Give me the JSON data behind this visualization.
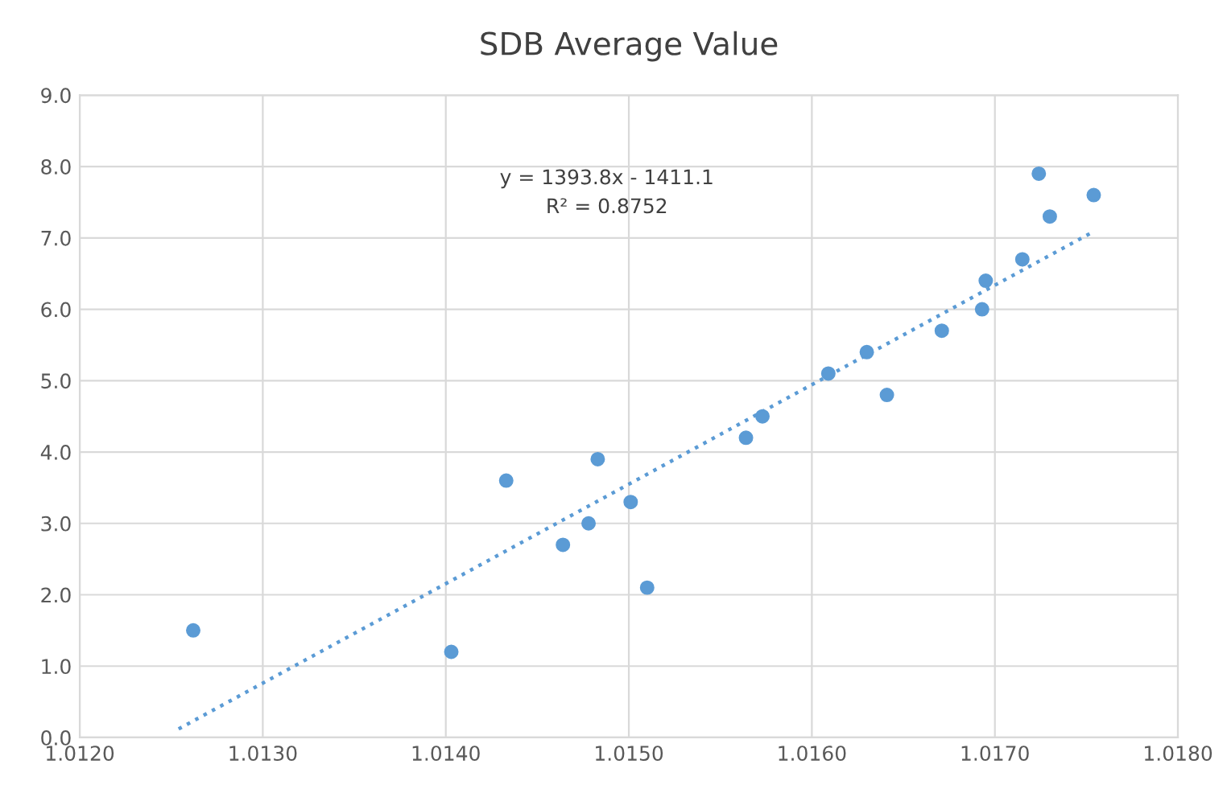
{
  "chart_data": {
    "type": "scatter",
    "title": "SDB Average Value",
    "series": [
      {
        "color": "#5b9bd5",
        "marker": "circle",
        "x": [
          1.01262,
          1.01403,
          1.01433,
          1.01464,
          1.01478,
          1.01483,
          1.01501,
          1.0151,
          1.01564,
          1.01573,
          1.01609,
          1.0163,
          1.01641,
          1.01671,
          1.01693,
          1.01695,
          1.01715,
          1.01724,
          1.0173,
          1.01754
        ],
        "values": [
          1.5,
          1.2,
          3.6,
          2.7,
          3.0,
          3.9,
          3.3,
          2.1,
          4.2,
          4.5,
          5.1,
          5.4,
          4.8,
          5.7,
          6.0,
          6.4,
          6.7,
          7.9,
          7.3,
          7.6
        ]
      },
      {
        "type": "line",
        "color": "#5b9bd5",
        "line_style": "dotted",
        "x": [
          1.01254,
          1.01754
        ],
        "values": [
          0.12,
          7.09
        ]
      }
    ],
    "annotations": [
      "y = 1393.8x - 1411.1",
      "R² = 0.8752"
    ],
    "xlim": [
      1.012,
      1.018
    ],
    "xticks": [
      {
        "value": 1.012,
        "label": "1.0120"
      },
      {
        "value": 1.013,
        "label": "1.0130"
      },
      {
        "value": 1.014,
        "label": "1.0140"
      },
      {
        "value": 1.015,
        "label": "1.0150"
      },
      {
        "value": 1.016,
        "label": "1.0160"
      },
      {
        "value": 1.017,
        "label": "1.0170"
      },
      {
        "value": 1.018,
        "label": "1.0180"
      }
    ],
    "ylim": [
      0,
      9
    ],
    "yticks": [
      {
        "value": 0,
        "label": "0.0"
      },
      {
        "value": 1,
        "label": "1.0"
      },
      {
        "value": 2,
        "label": "2.0"
      },
      {
        "value": 3,
        "label": "3.0"
      },
      {
        "value": 4,
        "label": "4.0"
      },
      {
        "value": 5,
        "label": "5.0"
      },
      {
        "value": 6,
        "label": "6.0"
      },
      {
        "value": 7,
        "label": "7.0"
      },
      {
        "value": 8,
        "label": "8.0"
      },
      {
        "value": 9,
        "label": "9.0"
      }
    ],
    "grid": true
  }
}
